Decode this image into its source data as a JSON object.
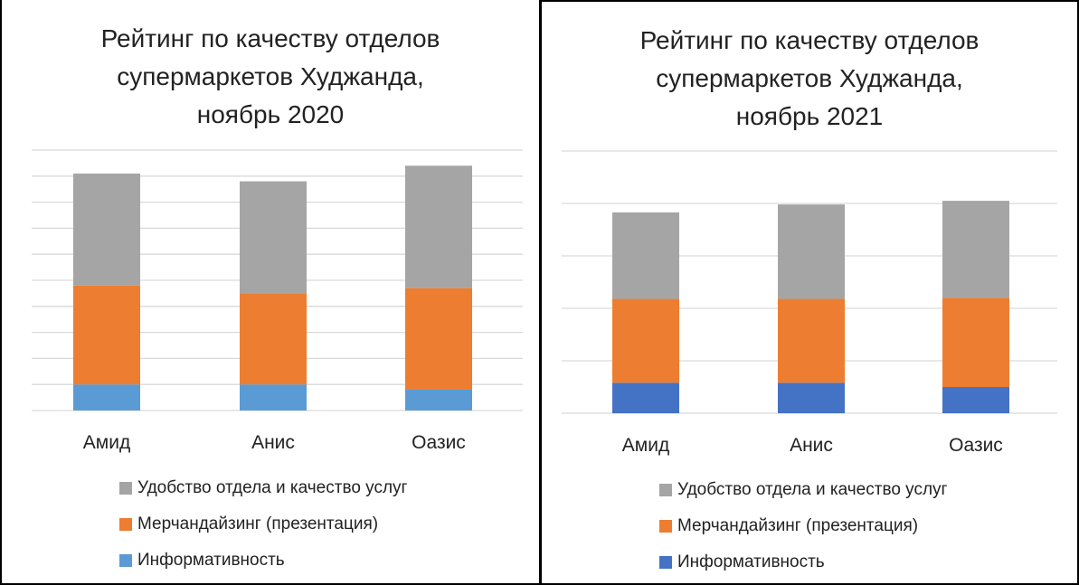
{
  "colors": {
    "convenience": "#a5a5a5",
    "merch": "#ed7d31",
    "info_2020": "#5b9bd5",
    "info_2021": "#4472c4",
    "grid": "#d9d9d9",
    "axis": "#d9d9d9"
  },
  "chart_data": [
    {
      "type": "bar",
      "stacked": true,
      "title": "Рейтинг по качеству отделов\nсупермаркетов Худжанда,\nноябрь 2020",
      "categories": [
        "Амид",
        "Анис",
        "Оазис"
      ],
      "ylim": [
        0,
        10
      ],
      "grid": true,
      "legend_position": "bottom",
      "series": [
        {
          "name": "Информативность",
          "values": [
            1.0,
            1.0,
            0.8
          ]
        },
        {
          "name": "Мерчандайзинг (презентация)",
          "values": [
            3.8,
            3.5,
            3.9
          ]
        },
        {
          "name": "Удобство отдела и качество услуг",
          "values": [
            4.3,
            4.3,
            4.7
          ]
        }
      ],
      "legend": [
        "Удобство отдела и качество услуг",
        "Мерчандайзинг (презентация)",
        "Информативность"
      ]
    },
    {
      "type": "bar",
      "stacked": true,
      "title": "Рейтинг по качеству отделов\nсупермаркетов Худжанда,\nноябрь 2021",
      "categories": [
        "Амид",
        "Анис",
        "Оазис"
      ],
      "ylim": [
        0,
        5
      ],
      "grid": true,
      "legend_position": "bottom",
      "series": [
        {
          "name": "Информативность",
          "values": [
            0.58,
            0.58,
            0.5
          ]
        },
        {
          "name": "Мерчандайзинг (презентация)",
          "values": [
            1.6,
            1.6,
            1.7
          ]
        },
        {
          "name": "Удобство отдела и качество услуг",
          "values": [
            1.65,
            1.8,
            1.85
          ]
        }
      ],
      "legend": [
        "Удобство отдела и качество услуг",
        "Мерчандайзинг (презентация)",
        "Информативность"
      ]
    }
  ]
}
